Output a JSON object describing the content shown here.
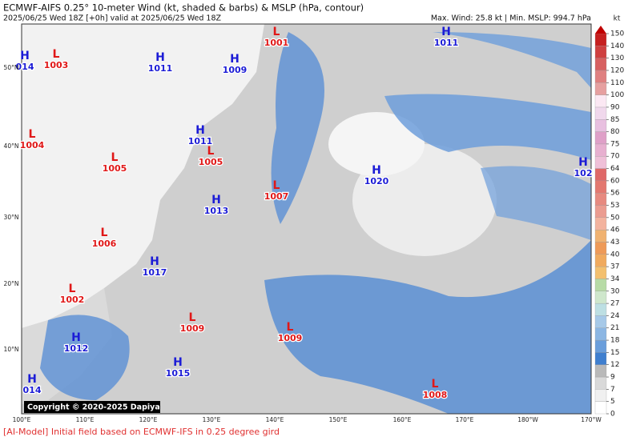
{
  "header": {
    "title": "ECMWF-AIFS 0.25° 10-meter Wind (kt, shaded & barbs) & MSLP (hPa, contour)",
    "subtitle": "2025/06/25 Wed 18Z [+0h] valid at 2025/06/25 Wed 18Z",
    "stats": "Max. Wind: 25.8 kt | Min. MSLP: 994.7 hPa"
  },
  "map": {
    "lon_labels": [
      "100°E",
      "110°E",
      "120°E",
      "130°E",
      "140°E",
      "150°E",
      "160°E",
      "170°E",
      "180°W",
      "170°W"
    ],
    "lat_labels": [
      "50°N",
      "40°N",
      "30°N",
      "20°N",
      "10°N"
    ],
    "high_color": "#1c1cd6",
    "low_color": "#e01818",
    "centers": [
      {
        "symbol": "H",
        "value": "014"
      },
      {
        "symbol": "L",
        "value": "1003"
      },
      {
        "symbol": "H",
        "value": "1011"
      },
      {
        "symbol": "H",
        "value": "1009"
      },
      {
        "symbol": "L",
        "value": "1001"
      },
      {
        "symbol": "H",
        "value": "1011"
      },
      {
        "symbol": "L",
        "value": "1004"
      },
      {
        "symbol": "H",
        "value": "1011"
      },
      {
        "symbol": "L",
        "value": "1005"
      },
      {
        "symbol": "L",
        "value": "1005"
      },
      {
        "symbol": "H",
        "value": "1020"
      },
      {
        "symbol": "H",
        "value": "102"
      },
      {
        "symbol": "L",
        "value": "1007"
      },
      {
        "symbol": "H",
        "value": "1013"
      },
      {
        "symbol": "L",
        "value": "1006"
      },
      {
        "symbol": "H",
        "value": "1017"
      },
      {
        "symbol": "L",
        "value": "1002"
      },
      {
        "symbol": "L",
        "value": "1009"
      },
      {
        "symbol": "L",
        "value": "1009"
      },
      {
        "symbol": "H",
        "value": "1012"
      },
      {
        "symbol": "H",
        "value": "1015"
      },
      {
        "symbol": "H",
        "value": "014"
      },
      {
        "symbol": "L",
        "value": "1008"
      }
    ],
    "copyright": "Copyright © 2020-2025 Dapiya"
  },
  "colorbar": {
    "unit": "kt",
    "ticks": [
      0,
      5,
      7,
      9,
      12,
      15,
      18,
      21,
      24,
      27,
      30,
      34,
      37,
      40,
      43,
      46,
      50,
      53,
      56,
      60,
      64,
      70,
      75,
      80,
      85,
      90,
      100,
      110,
      120,
      130,
      140,
      150
    ],
    "colors": [
      "#ffffff",
      "#f0f0f0",
      "#d9d9d9",
      "#b9b9b9",
      "#3f7fcf",
      "#6a9edb",
      "#8bb6e3",
      "#a6c9e8",
      "#bddfe3",
      "#cfe7cc",
      "#b7dba6",
      "#f3c06f",
      "#f0aa5e",
      "#ee9a58",
      "#f0b270",
      "#f3b39e",
      "#eb9c90",
      "#e78a80",
      "#e37870",
      "#df6868",
      "#efc0d8",
      "#e7b0d0",
      "#dfa0c8",
      "#e8c0e0",
      "#f0d8ec",
      "#fbe8f3",
      "#e6a0a0",
      "#df8080",
      "#d76060",
      "#cf4040",
      "#c62020"
    ],
    "top_color": "#c00000"
  },
  "footer": "[AI-Model] Initial field based on ECMWF-IFS in 0.25 degree gird"
}
